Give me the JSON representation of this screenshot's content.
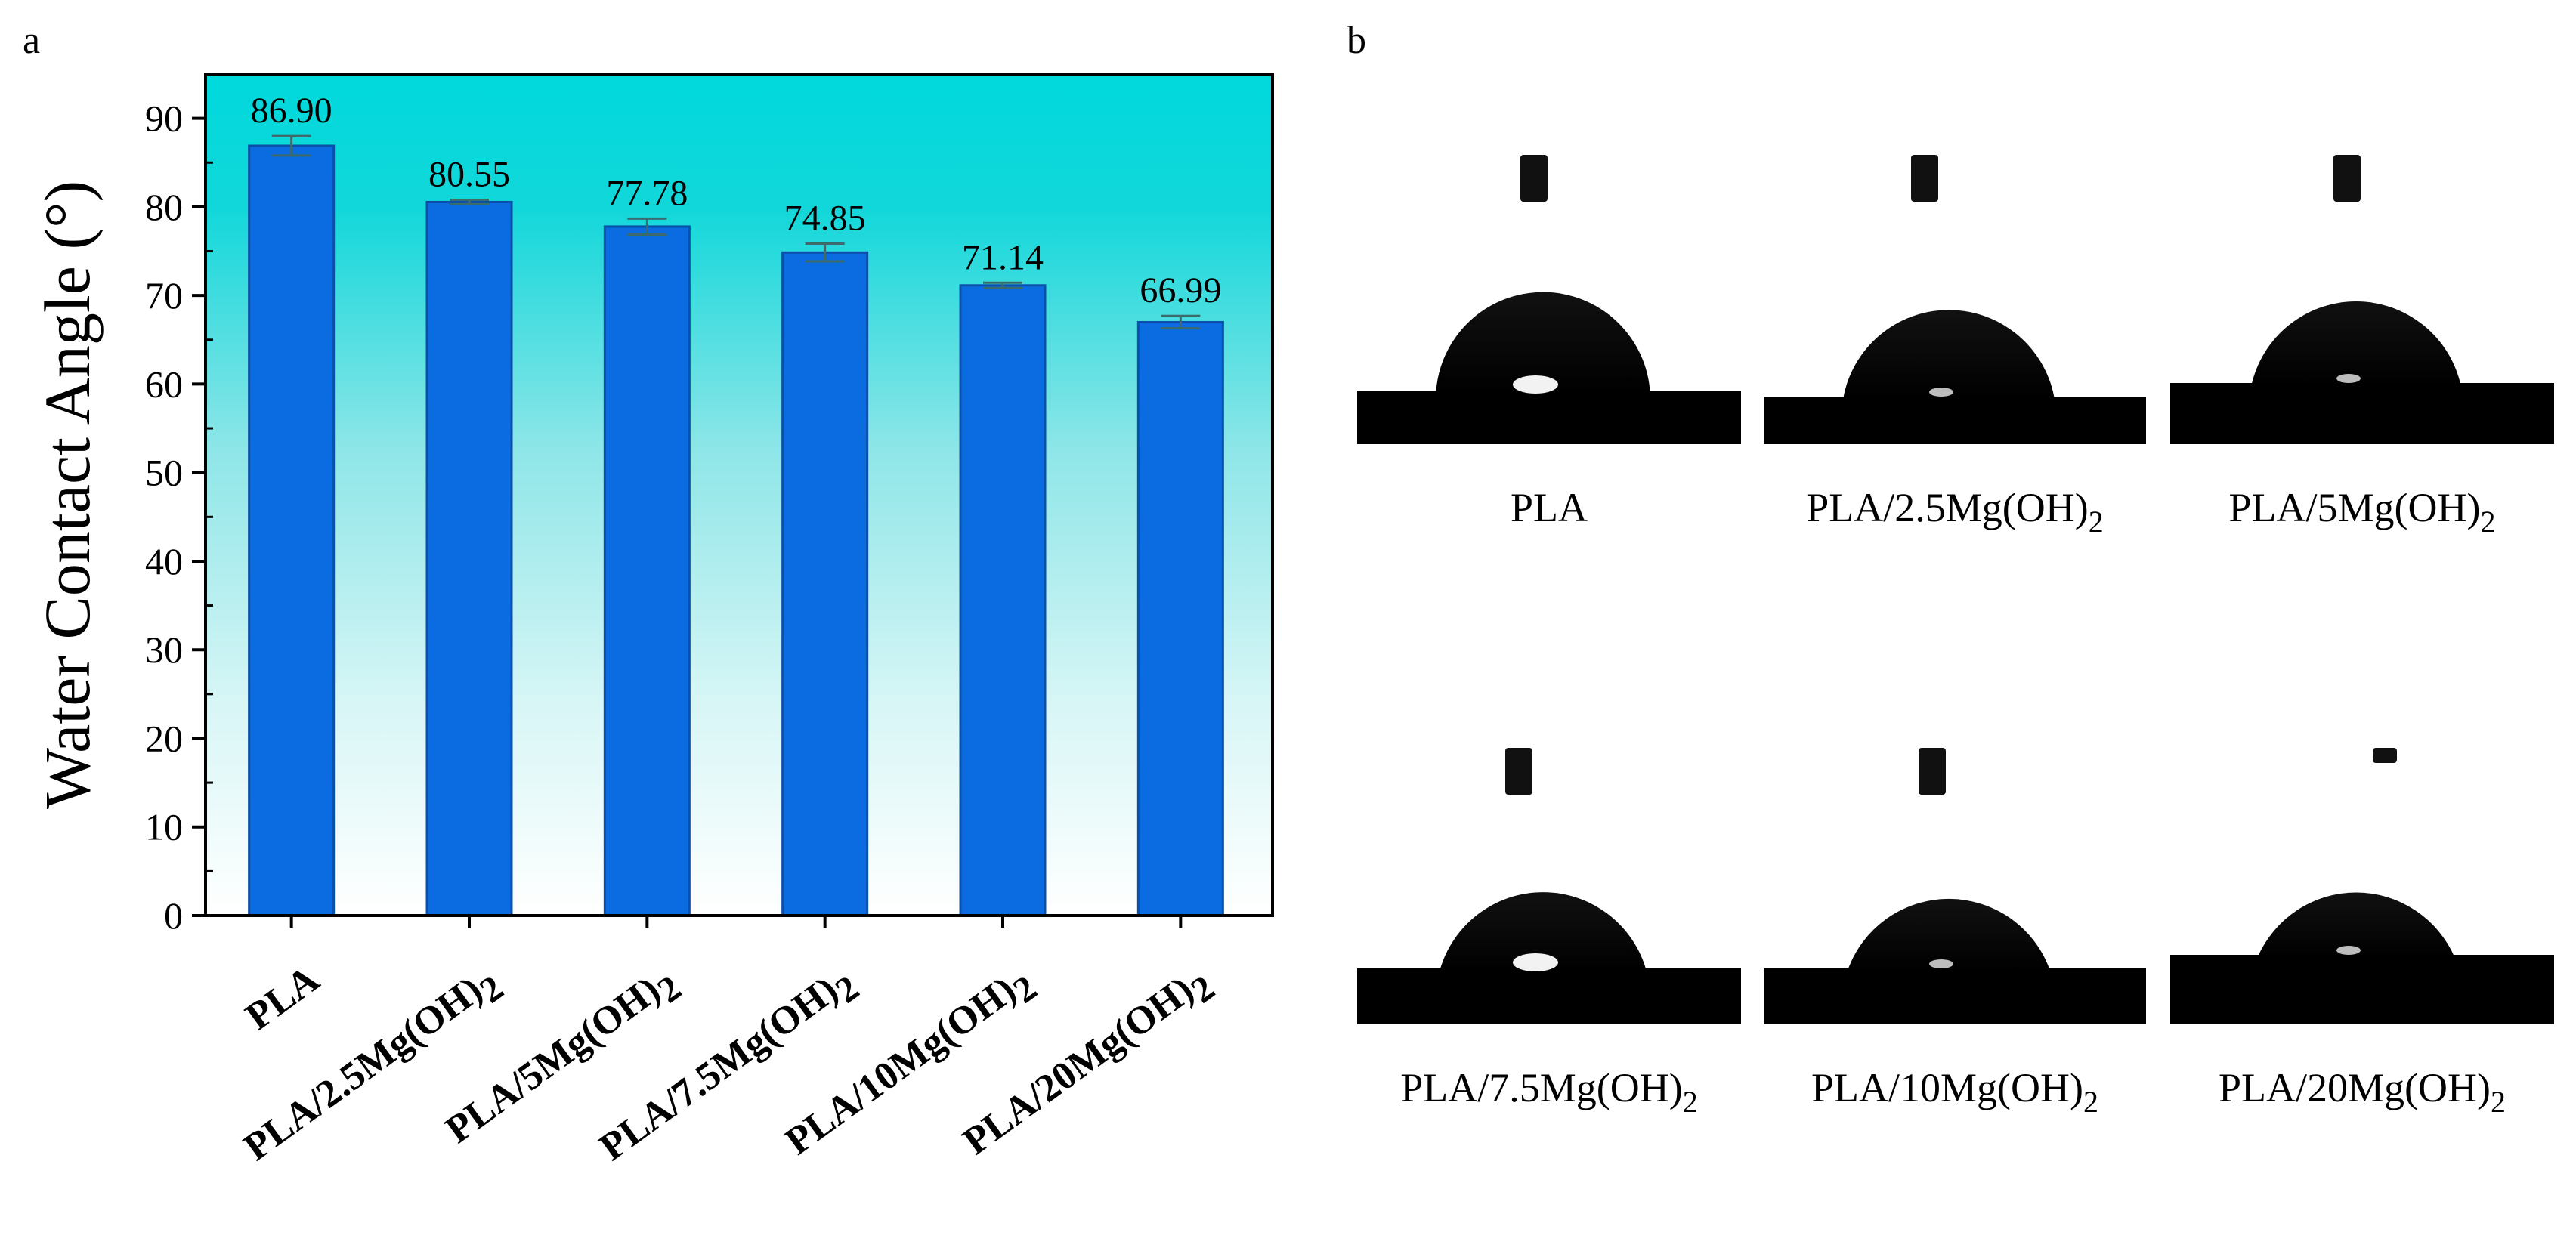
{
  "panels": {
    "a_label": "a",
    "b_label": "b"
  },
  "chart_data": {
    "type": "bar",
    "categories": [
      "PLA",
      "PLA/2.5Mg(OH)2",
      "PLA/5Mg(OH)2",
      "PLA/7.5Mg(OH)2",
      "PLA/10Mg(OH)2",
      "PLA/20Mg(OH)2"
    ],
    "category_parts": [
      {
        "base": "PLA",
        "sub": ""
      },
      {
        "base": "PLA/2.5Mg(OH)",
        "sub": "2"
      },
      {
        "base": "PLA/5Mg(OH)",
        "sub": "2"
      },
      {
        "base": "PLA/7.5Mg(OH)",
        "sub": "2"
      },
      {
        "base": "PLA/10Mg(OH)",
        "sub": "2"
      },
      {
        "base": "PLA/20Mg(OH)",
        "sub": "2"
      }
    ],
    "values": [
      86.9,
      80.55,
      77.78,
      74.85,
      71.14,
      66.99
    ],
    "value_labels": [
      "86.90",
      "80.55",
      "77.78",
      "74.85",
      "71.14",
      "66.99"
    ],
    "errors": [
      1.1,
      0.25,
      0.9,
      1.0,
      0.3,
      0.7
    ],
    "ylabel": "Water Contact Angle (°)",
    "xlabel": "",
    "ylim": [
      0,
      95
    ],
    "yticks": [
      0,
      10,
      20,
      30,
      40,
      50,
      60,
      70,
      80,
      90
    ],
    "bar_color": "#0a6ce0",
    "bar_edge_color": "#0a4fa8",
    "background_gradient": [
      "#00d9dc",
      "#ffffff"
    ]
  },
  "droplet_images": [
    {
      "base": "PLA",
      "sub": "",
      "angle": 86.9
    },
    {
      "base": "PLA/2.5Mg(OH)",
      "sub": "2",
      "angle": 80.55
    },
    {
      "base": "PLA/5Mg(OH)",
      "sub": "2",
      "angle": 77.78
    },
    {
      "base": "PLA/7.5Mg(OH)",
      "sub": "2",
      "angle": 74.85
    },
    {
      "base": "PLA/10Mg(OH)",
      "sub": "2",
      "angle": 71.14
    },
    {
      "base": "PLA/20Mg(OH)",
      "sub": "2",
      "angle": 66.99
    }
  ]
}
